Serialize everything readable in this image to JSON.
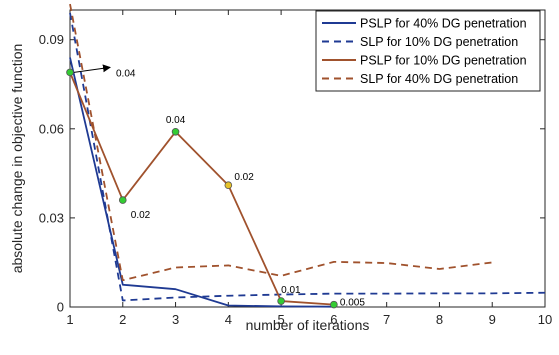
{
  "chart_data": {
    "type": "line",
    "title": "",
    "xlabel": "number of iterations",
    "ylabel": "absolute change in objective function",
    "xlim": [
      1,
      10
    ],
    "ylim": [
      0,
      0.1
    ],
    "xticks": [
      1,
      2,
      3,
      4,
      5,
      6,
      7,
      8,
      9,
      10
    ],
    "yticks": [
      0,
      0.03,
      0.06,
      0.09
    ],
    "ytick_labels": [
      "0",
      "0.03",
      "0.06",
      "0.09"
    ],
    "grid": false,
    "legend_position": "top-right",
    "series": [
      {
        "name": "PSLP for 40% DG penetration",
        "color": "#1f3a93",
        "style": "solid",
        "x": [
          1,
          2,
          3,
          4,
          5,
          6
        ],
        "y": [
          0.084,
          0.0075,
          0.006,
          0.0005,
          0.0002,
          0.0001
        ]
      },
      {
        "name": "SLP for 10% DG penetration",
        "color": "#1f3a93",
        "style": "dashed",
        "x": [
          1,
          2,
          3,
          4,
          5,
          6,
          7,
          8,
          9,
          10
        ],
        "y": [
          0.099,
          0.0022,
          0.0032,
          0.0038,
          0.0042,
          0.0045,
          0.0045,
          0.0046,
          0.0046,
          0.0048
        ]
      },
      {
        "name": "PSLP for 10% DG penetration",
        "color": "#a0522d",
        "style": "solid",
        "x": [
          1,
          2,
          3,
          4,
          5,
          6
        ],
        "y": [
          0.079,
          0.036,
          0.059,
          0.041,
          0.002,
          0.0008
        ]
      },
      {
        "name": "SLP for 40% DG penetration",
        "color": "#a0522d",
        "style": "dashed",
        "x": [
          1,
          2,
          3,
          4,
          5,
          6,
          7,
          8,
          9
        ],
        "y": [
          0.102,
          0.009,
          0.0133,
          0.014,
          0.0105,
          0.0152,
          0.0148,
          0.0128,
          0.015
        ]
      }
    ],
    "markers": [
      {
        "x": 1,
        "y": 0.079,
        "color": "#33cc33"
      },
      {
        "x": 2,
        "y": 0.036,
        "color": "#33cc33"
      },
      {
        "x": 3,
        "y": 0.059,
        "color": "#33cc33"
      },
      {
        "x": 4,
        "y": 0.041,
        "color": "#e6c229"
      },
      {
        "x": 5,
        "y": 0.002,
        "color": "#33cc33"
      },
      {
        "x": 6,
        "y": 0.0008,
        "color": "#33cc33"
      }
    ],
    "annotations": [
      {
        "text": "0.04",
        "x": 1,
        "y": 0.079,
        "arrow": true
      },
      {
        "text": "0.02",
        "x": 2,
        "y": 0.036
      },
      {
        "text": "0.04",
        "x": 3,
        "y": 0.059
      },
      {
        "text": "0.02",
        "x": 4,
        "y": 0.041
      },
      {
        "text": "0.01",
        "x": 5,
        "y": 0.002
      },
      {
        "text": "0.005",
        "x": 6,
        "y": 0.0008
      }
    ]
  }
}
